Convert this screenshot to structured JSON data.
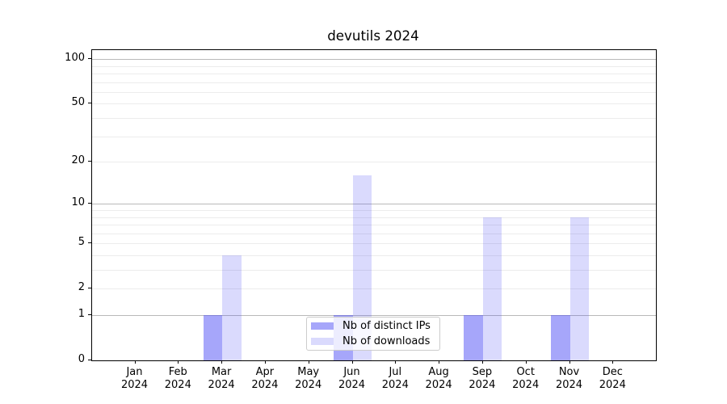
{
  "chart": {
    "title": "devutils 2024",
    "year_label": "2024",
    "legend": {
      "items": [
        {
          "label": "Nb of distinct IPs"
        },
        {
          "label": "Nb of downloads"
        }
      ]
    },
    "chart_data": {
      "type": "bar",
      "title": "devutils 2024",
      "xlabel": "",
      "ylabel": "",
      "categories": [
        "Jan",
        "Feb",
        "Mar",
        "Apr",
        "May",
        "Jun",
        "Jul",
        "Aug",
        "Sep",
        "Oct",
        "Nov",
        "Dec"
      ],
      "series": [
        {
          "name": "Nb of distinct IPs",
          "color": "rgba(70,70,245,0.48)",
          "values": [
            0,
            0,
            1,
            0,
            0,
            1,
            0,
            0,
            1,
            0,
            1,
            0
          ]
        },
        {
          "name": "Nb of downloads",
          "color": "rgba(70,70,245,0.20)",
          "values": [
            0,
            0,
            4,
            0,
            0,
            16,
            0,
            0,
            8,
            0,
            8,
            0
          ]
        }
      ],
      "y_scale": "log(1+x)",
      "ylim": [
        0,
        115
      ],
      "y_tick_values": [
        0,
        1,
        2,
        5,
        10,
        20,
        50,
        100
      ],
      "y_major_gridlines": [
        1,
        10,
        100
      ],
      "y_minor_gridlines": [
        2,
        3,
        4,
        5,
        6,
        7,
        8,
        9,
        20,
        30,
        40,
        50,
        60,
        70,
        80,
        90
      ],
      "grid": true,
      "legend_position": "lower center",
      "colors": {
        "major_grid": "#b9b9b9",
        "minor_grid": "#ececec",
        "spine": "#000000",
        "distinct_ips_bar": "#a6a6f9",
        "downloads_bar": "#dbdbfb"
      }
    }
  }
}
